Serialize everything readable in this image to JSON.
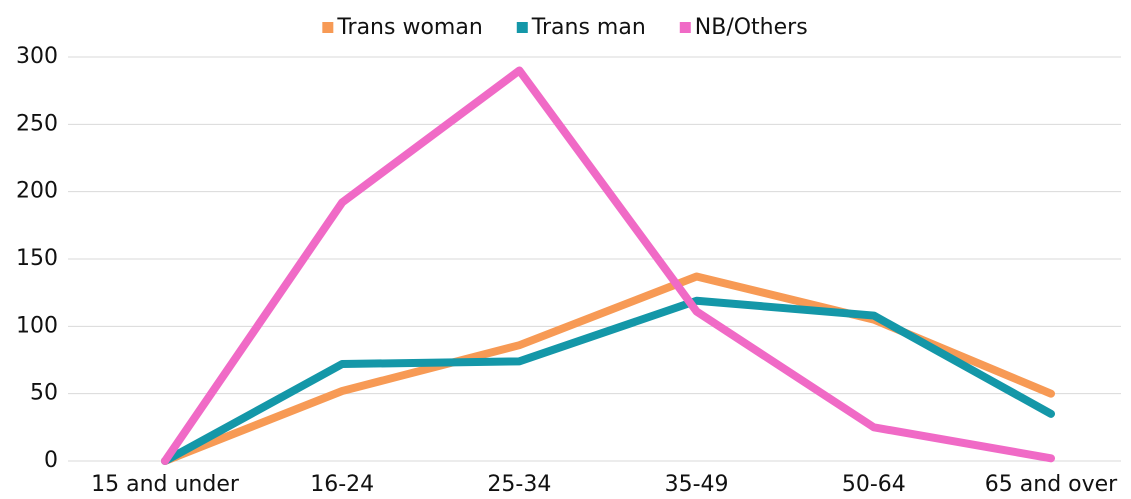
{
  "chart_data": {
    "type": "line",
    "categories": [
      "15 and under",
      "16-24",
      "25-34",
      "35-49",
      "50-64",
      "65 and over"
    ],
    "series": [
      {
        "name": "Trans woman",
        "color": "#f79a55",
        "values": [
          0,
          52,
          86,
          137,
          105,
          50
        ]
      },
      {
        "name": "Trans man",
        "color": "#1497a8",
        "values": [
          0,
          72,
          74,
          119,
          108,
          35
        ]
      },
      {
        "name": "NB/Others",
        "color": "#f06ac6",
        "values": [
          0,
          192,
          290,
          111,
          25,
          2
        ]
      }
    ],
    "ylim": [
      0,
      300
    ],
    "yticks": [
      0,
      50,
      100,
      150,
      200,
      250,
      300
    ],
    "grid": true,
    "legend": "top"
  }
}
